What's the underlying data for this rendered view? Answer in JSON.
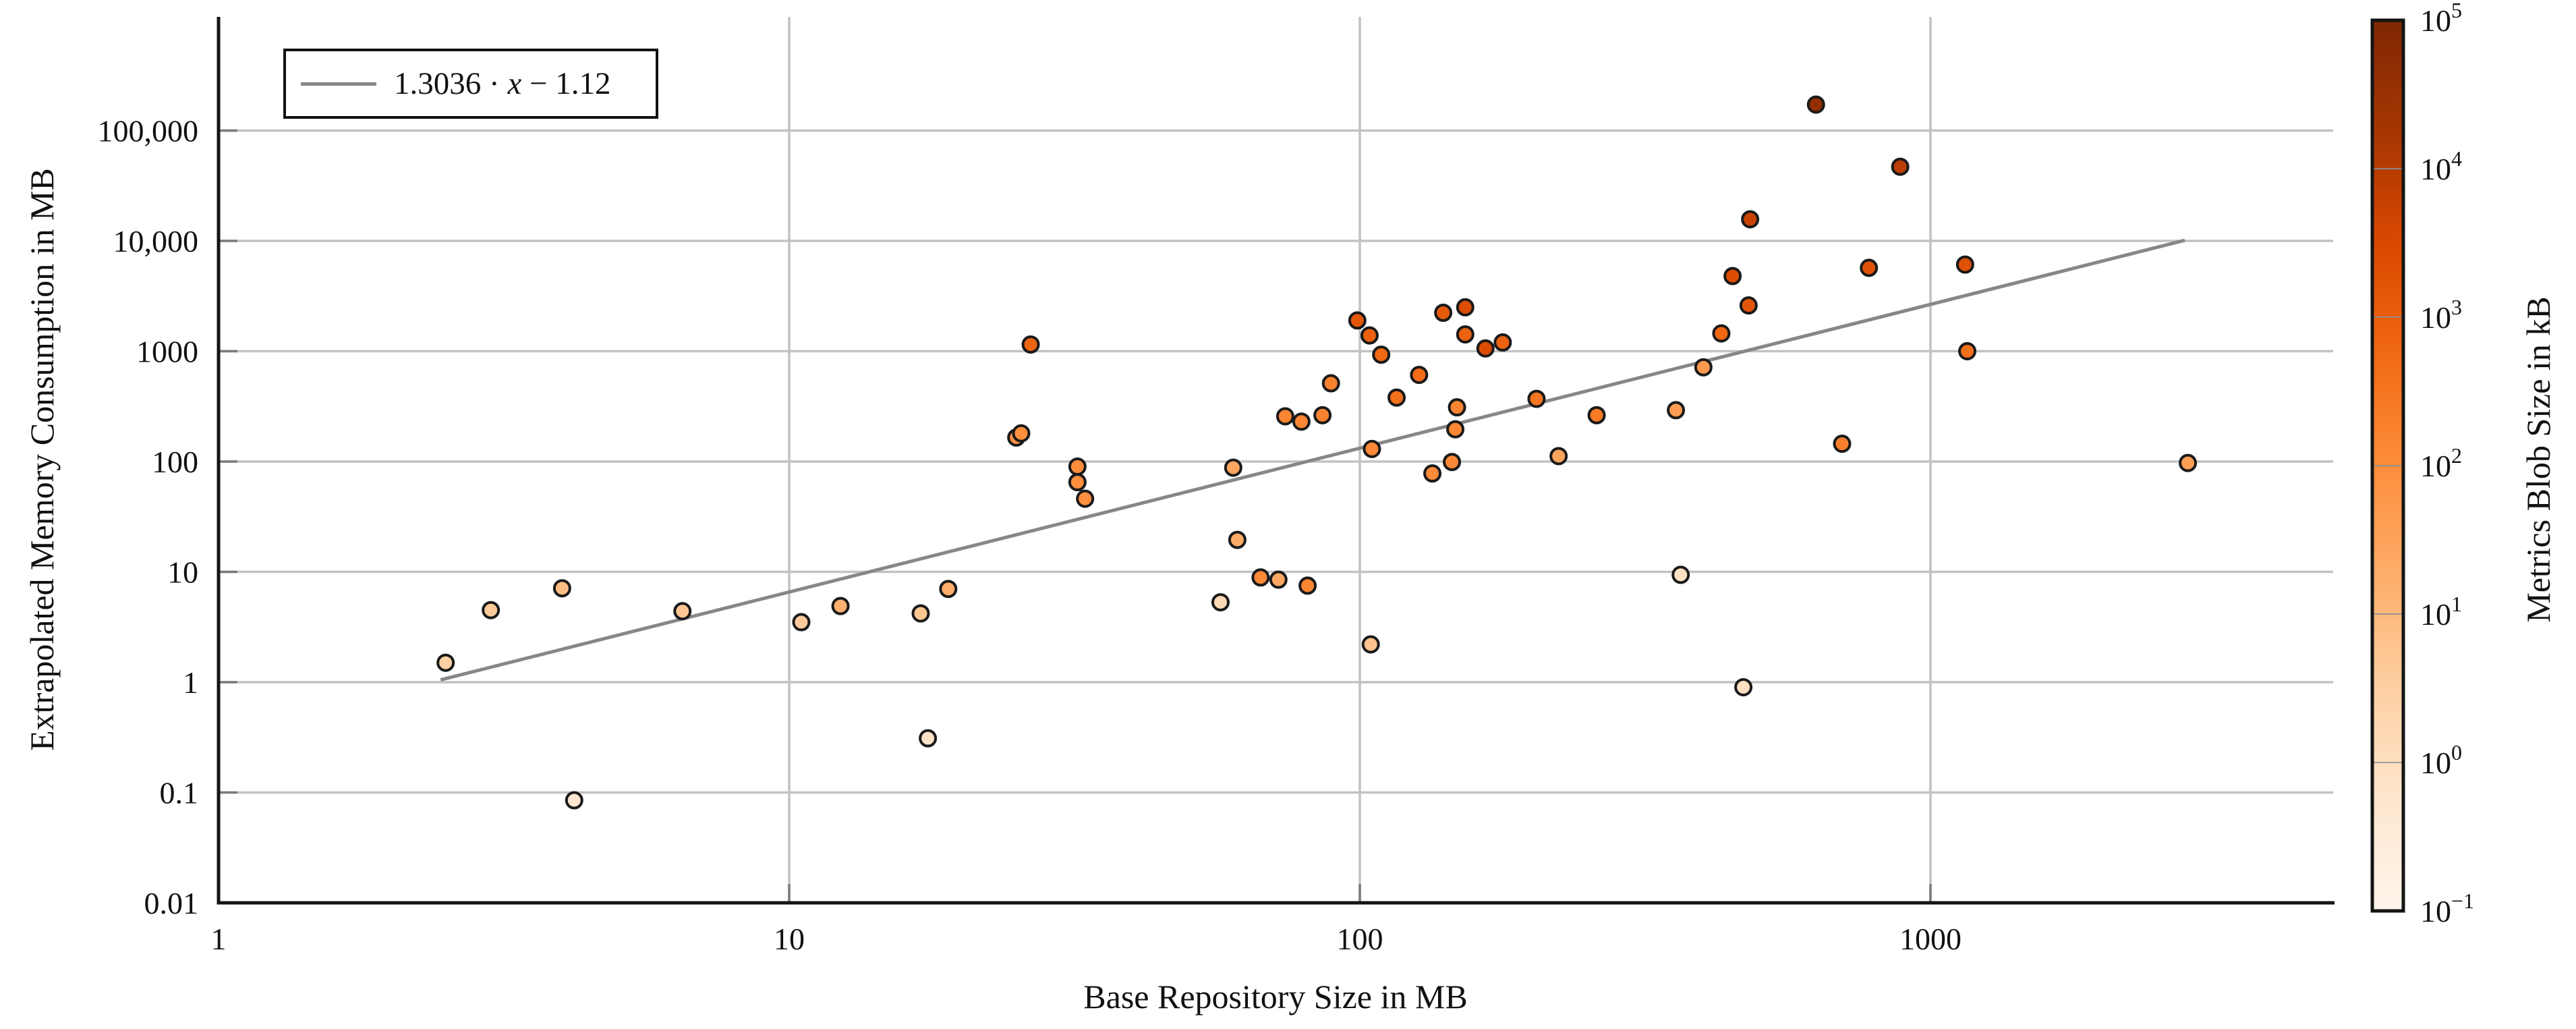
{
  "figure": {
    "background": "#ffffff"
  },
  "legend": {
    "full_label": "1.3036 · x − 1.12",
    "coef_text": "1.3036 · ",
    "var_text": "x",
    "intercept_text": " − 1.12",
    "line_color": "#878787"
  },
  "chart_data": {
    "type": "scatter",
    "title": "",
    "xlabel": "Base Repository Size in MB",
    "ylabel": "Extrapolated Memory Consumption in MB",
    "x_scale": "log",
    "y_scale": "log",
    "xlim": [
      1,
      5000
    ],
    "ylim": [
      0.01,
      1000000
    ],
    "grid": true,
    "x_ticks": [
      {
        "v": 1,
        "label": "1"
      },
      {
        "v": 10,
        "label": "10"
      },
      {
        "v": 100,
        "label": "100"
      },
      {
        "v": 1000,
        "label": "1000"
      }
    ],
    "y_ticks": [
      {
        "v": 100000,
        "label": "100,000"
      },
      {
        "v": 10000,
        "label": "10,000"
      },
      {
        "v": 1000,
        "label": "1000"
      },
      {
        "v": 100,
        "label": "100"
      },
      {
        "v": 10,
        "label": "10"
      },
      {
        "v": 1,
        "label": "1"
      },
      {
        "v": 0.1,
        "label": "0.1"
      },
      {
        "v": 0.01,
        "label": "0.01"
      }
    ],
    "grid_v": [
      10,
      100,
      1000
    ],
    "grid_h": [
      0.1,
      1,
      10,
      100,
      1000,
      10000,
      100000
    ],
    "fit_line": {
      "label": "1.3036 · x − 1.12",
      "slope": 1.3036,
      "intercept_ln": -1.12,
      "x_start": 2.45,
      "x_end": 2790,
      "color": "#878787"
    },
    "colorbar": {
      "label": "Metrics Blob Size in kB",
      "range": [
        0.1,
        100000
      ],
      "ticks": [
        {
          "v": 100000,
          "base": "10",
          "exp": "5"
        },
        {
          "v": 10000,
          "base": "10",
          "exp": "4"
        },
        {
          "v": 1000,
          "base": "10",
          "exp": "3"
        },
        {
          "v": 100,
          "base": "10",
          "exp": "2"
        },
        {
          "v": 10,
          "base": "10",
          "exp": "1"
        },
        {
          "v": 1,
          "base": "10",
          "exp": "0"
        },
        {
          "v": 0.1,
          "base": "10",
          "exp": "−1"
        }
      ],
      "colormap_name": "Oranges",
      "colormap_stops": [
        [
          0.0,
          "#fff5eb"
        ],
        [
          0.125,
          "#fee6ce"
        ],
        [
          0.25,
          "#fdd0a2"
        ],
        [
          0.375,
          "#fdae6b"
        ],
        [
          0.5,
          "#fd8d3c"
        ],
        [
          0.625,
          "#f16913"
        ],
        [
          0.75,
          "#d94801"
        ],
        [
          0.875,
          "#a63603"
        ],
        [
          1.0,
          "#7f2704"
        ]
      ]
    },
    "points": [
      {
        "x": 2.5,
        "y": 1.5,
        "c": 3
      },
      {
        "x": 3,
        "y": 4.5,
        "c": 4
      },
      {
        "x": 4,
        "y": 7.1,
        "c": 8
      },
      {
        "x": 4.2,
        "y": 0.085,
        "c": 0.5
      },
      {
        "x": 6.5,
        "y": 4.4,
        "c": 5
      },
      {
        "x": 10.5,
        "y": 3.5,
        "c": 4
      },
      {
        "x": 12.3,
        "y": 4.9,
        "c": 15
      },
      {
        "x": 17,
        "y": 4.2,
        "c": 5
      },
      {
        "x": 19,
        "y": 7,
        "c": 18
      },
      {
        "x": 17.5,
        "y": 0.31,
        "c": 0.7
      },
      {
        "x": 25,
        "y": 165,
        "c": 80
      },
      {
        "x": 25.5,
        "y": 180,
        "c": 90
      },
      {
        "x": 26.5,
        "y": 1150,
        "c": 700
      },
      {
        "x": 32,
        "y": 90,
        "c": 100
      },
      {
        "x": 32,
        "y": 65,
        "c": 90
      },
      {
        "x": 33,
        "y": 46,
        "c": 85
      },
      {
        "x": 57,
        "y": 5.3,
        "c": 1.5
      },
      {
        "x": 60,
        "y": 88,
        "c": 25
      },
      {
        "x": 61,
        "y": 19.5,
        "c": 20
      },
      {
        "x": 67,
        "y": 8.9,
        "c": 120
      },
      {
        "x": 72,
        "y": 8.5,
        "c": 25
      },
      {
        "x": 81,
        "y": 7.5,
        "c": 150
      },
      {
        "x": 74,
        "y": 257,
        "c": 150
      },
      {
        "x": 79,
        "y": 230,
        "c": 140
      },
      {
        "x": 86,
        "y": 263,
        "c": 160
      },
      {
        "x": 89,
        "y": 512,
        "c": 170
      },
      {
        "x": 99,
        "y": 1900,
        "c": 1500
      },
      {
        "x": 104,
        "y": 1390,
        "c": 900
      },
      {
        "x": 104.5,
        "y": 2.2,
        "c": 6
      },
      {
        "x": 105,
        "y": 130,
        "c": 120
      },
      {
        "x": 109,
        "y": 930,
        "c": 600
      },
      {
        "x": 116,
        "y": 380,
        "c": 400
      },
      {
        "x": 127,
        "y": 610,
        "c": 500
      },
      {
        "x": 134,
        "y": 78,
        "c": 110
      },
      {
        "x": 140,
        "y": 2230,
        "c": 1200
      },
      {
        "x": 145,
        "y": 99,
        "c": 130
      },
      {
        "x": 147,
        "y": 196,
        "c": 140
      },
      {
        "x": 148,
        "y": 310,
        "c": 150
      },
      {
        "x": 153,
        "y": 2500,
        "c": 2500
      },
      {
        "x": 153,
        "y": 1420,
        "c": 800
      },
      {
        "x": 166,
        "y": 1060,
        "c": 2500
      },
      {
        "x": 178,
        "y": 1200,
        "c": 800
      },
      {
        "x": 204,
        "y": 370,
        "c": 300
      },
      {
        "x": 223,
        "y": 112,
        "c": 30
      },
      {
        "x": 260,
        "y": 263,
        "c": 250
      },
      {
        "x": 358,
        "y": 292,
        "c": 45
      },
      {
        "x": 365,
        "y": 9.4,
        "c": 0.8
      },
      {
        "x": 400,
        "y": 715,
        "c": 50
      },
      {
        "x": 430,
        "y": 1450,
        "c": 600
      },
      {
        "x": 450,
        "y": 4800,
        "c": 2500
      },
      {
        "x": 470,
        "y": 0.9,
        "c": 0.9
      },
      {
        "x": 480,
        "y": 2600,
        "c": 1500
      },
      {
        "x": 483,
        "y": 15700,
        "c": 5000
      },
      {
        "x": 630,
        "y": 172000,
        "c": 40000
      },
      {
        "x": 700,
        "y": 145,
        "c": 200
      },
      {
        "x": 780,
        "y": 5700,
        "c": 2000
      },
      {
        "x": 885,
        "y": 47000,
        "c": 9000
      },
      {
        "x": 1150,
        "y": 6100,
        "c": 2000
      },
      {
        "x": 1160,
        "y": 1000,
        "c": 400
      },
      {
        "x": 2825,
        "y": 97,
        "c": 40
      }
    ],
    "style": {
      "grid_color": "#c2c2c2",
      "axis_color": "#141414",
      "tick_color": "#7a7a7a",
      "marker_edge": "#1a1a1a",
      "cb_inner_tick": "#8a9199"
    }
  }
}
